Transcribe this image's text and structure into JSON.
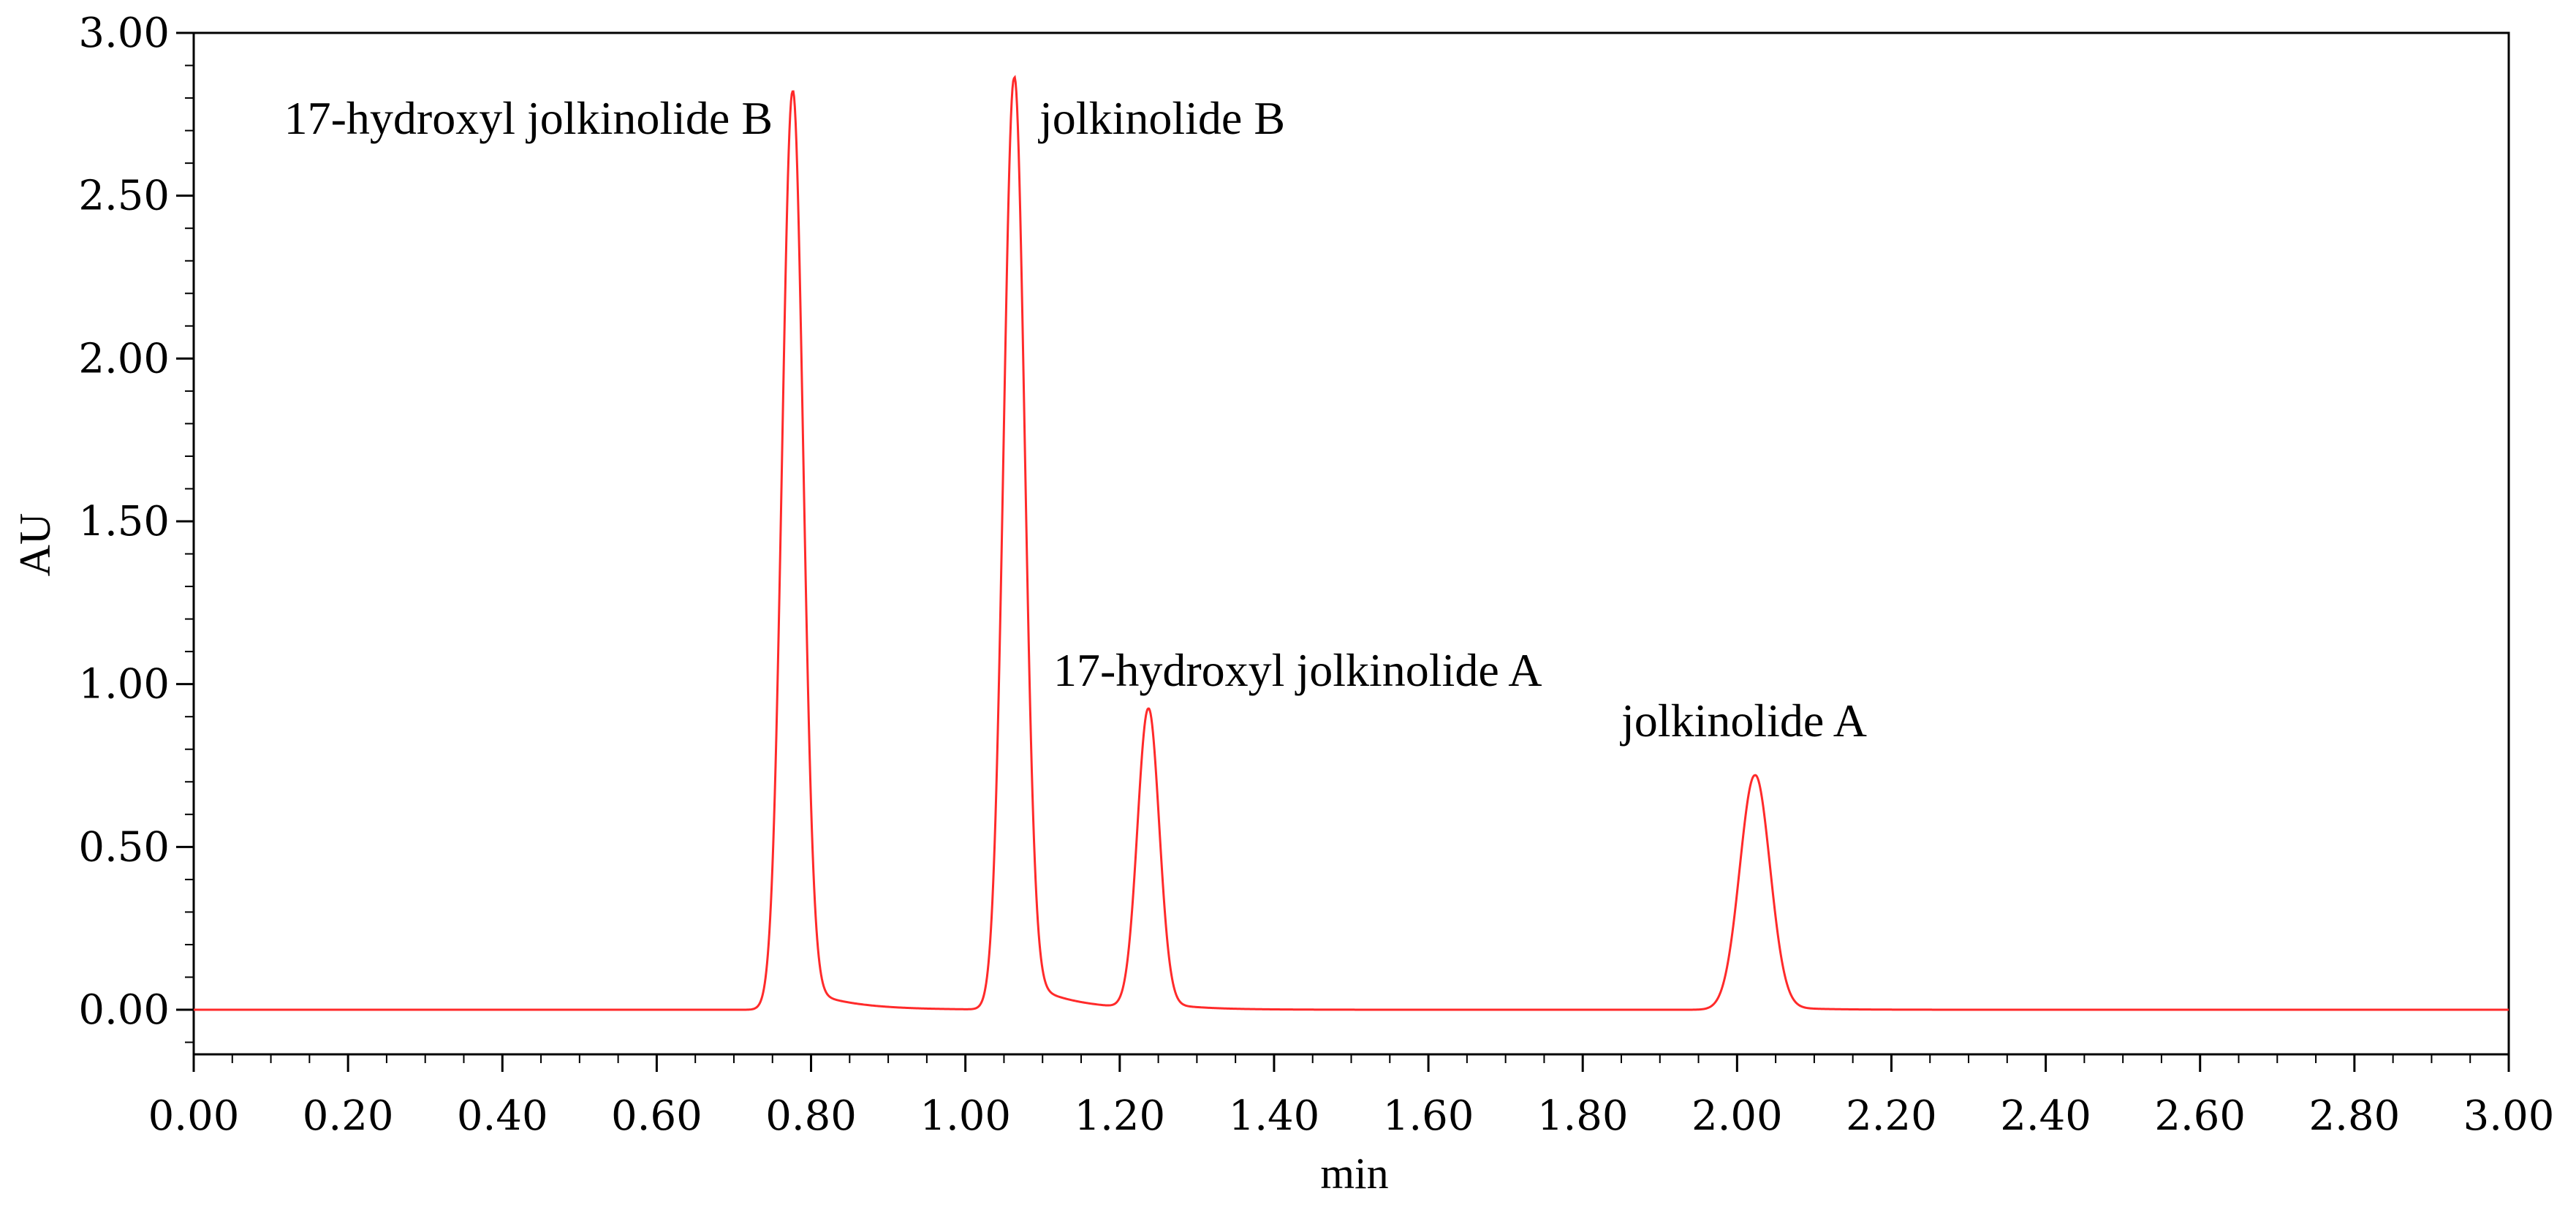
{
  "chart_data": {
    "type": "line",
    "title": "",
    "xlabel": "min",
    "ylabel": "AU",
    "xlim": [
      0.0,
      3.0
    ],
    "ylim": [
      -0.15,
      3.0
    ],
    "x_ticks": [
      "0.00",
      "0.20",
      "0.40",
      "0.60",
      "0.80",
      "1.00",
      "1.20",
      "1.40",
      "1.60",
      "1.80",
      "2.00",
      "2.20",
      "2.40",
      "2.60",
      "2.80",
      "3.00"
    ],
    "y_ticks": [
      "0.00",
      "0.50",
      "1.00",
      "1.50",
      "2.00",
      "2.50",
      "3.00"
    ],
    "grid": false,
    "line_color": "#ff2a2a",
    "peaks": [
      {
        "name": "17-hydroxyl jolkinolide B",
        "retention_time": 0.776,
        "height": 2.82
      },
      {
        "name": "jolkinolide B",
        "retention_time": 1.063,
        "height": 2.86
      },
      {
        "name": "17-hydroxyl jolkinolide A",
        "retention_time": 1.237,
        "height": 0.92
      },
      {
        "name": "jolkinolide A",
        "retention_time": 2.023,
        "height": 0.72
      }
    ],
    "annotations": [
      {
        "text": "17-hydroxyl jolkinolide B"
      },
      {
        "text": "jolkinolide B"
      },
      {
        "text": "17-hydroxyl jolkinolide A"
      },
      {
        "text": "jolkinolide A"
      }
    ]
  }
}
